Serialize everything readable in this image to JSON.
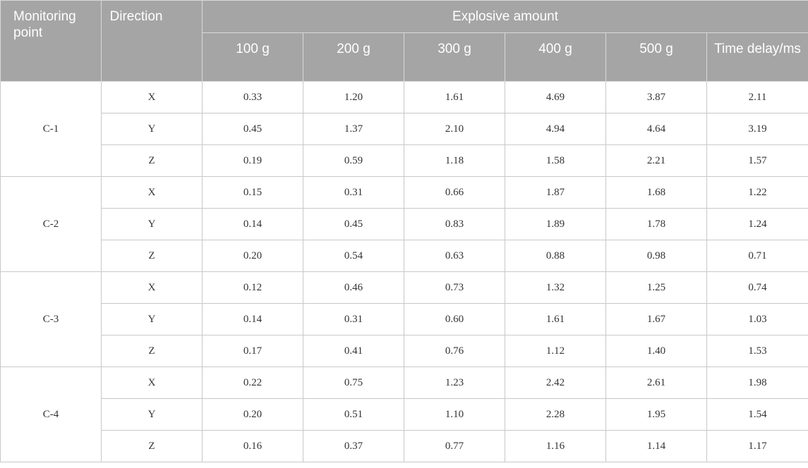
{
  "headers": {
    "monitoring_point": "Monitoring point",
    "direction": "Direction",
    "explosive_amount": "Explosive amount",
    "columns": [
      "100 g",
      "200 g",
      "300 g",
      "400 g",
      "500 g",
      "Time delay/ms"
    ]
  },
  "groups": [
    {
      "point": "C-1",
      "rows": [
        {
          "direction": "X",
          "values": [
            "0.33",
            "1.20",
            "1.61",
            "4.69",
            "3.87",
            "2.11"
          ]
        },
        {
          "direction": "Y",
          "values": [
            "0.45",
            "1.37",
            "2.10",
            "4.94",
            "4.64",
            "3.19"
          ]
        },
        {
          "direction": "Z",
          "values": [
            "0.19",
            "0.59",
            "1.18",
            "1.58",
            "2.21",
            "1.57"
          ]
        }
      ]
    },
    {
      "point": "C-2",
      "rows": [
        {
          "direction": "X",
          "values": [
            "0.15",
            "0.31",
            "0.66",
            "1.87",
            "1.68",
            "1.22"
          ]
        },
        {
          "direction": "Y",
          "values": [
            "0.14",
            "0.45",
            "0.83",
            "1.89",
            "1.78",
            "1.24"
          ]
        },
        {
          "direction": "Z",
          "values": [
            "0.20",
            "0.54",
            "0.63",
            "0.88",
            "0.98",
            "0.71"
          ]
        }
      ]
    },
    {
      "point": "C-3",
      "rows": [
        {
          "direction": "X",
          "values": [
            "0.12",
            "0.46",
            "0.73",
            "1.32",
            "1.25",
            "0.74"
          ]
        },
        {
          "direction": "Y",
          "values": [
            "0.14",
            "0.31",
            "0.60",
            "1.61",
            "1.67",
            "1.03"
          ]
        },
        {
          "direction": "Z",
          "values": [
            "0.17",
            "0.41",
            "0.76",
            "1.12",
            "1.40",
            "1.53"
          ]
        }
      ]
    },
    {
      "point": "C-4",
      "rows": [
        {
          "direction": "X",
          "values": [
            "0.22",
            "0.75",
            "1.23",
            "2.42",
            "2.61",
            "1.98"
          ]
        },
        {
          "direction": "Y",
          "values": [
            "0.20",
            "0.51",
            "1.10",
            "2.28",
            "1.95",
            "1.54"
          ]
        },
        {
          "direction": "Z",
          "values": [
            "0.16",
            "0.37",
            "0.77",
            "1.16",
            "1.14",
            "1.17"
          ]
        }
      ]
    }
  ]
}
